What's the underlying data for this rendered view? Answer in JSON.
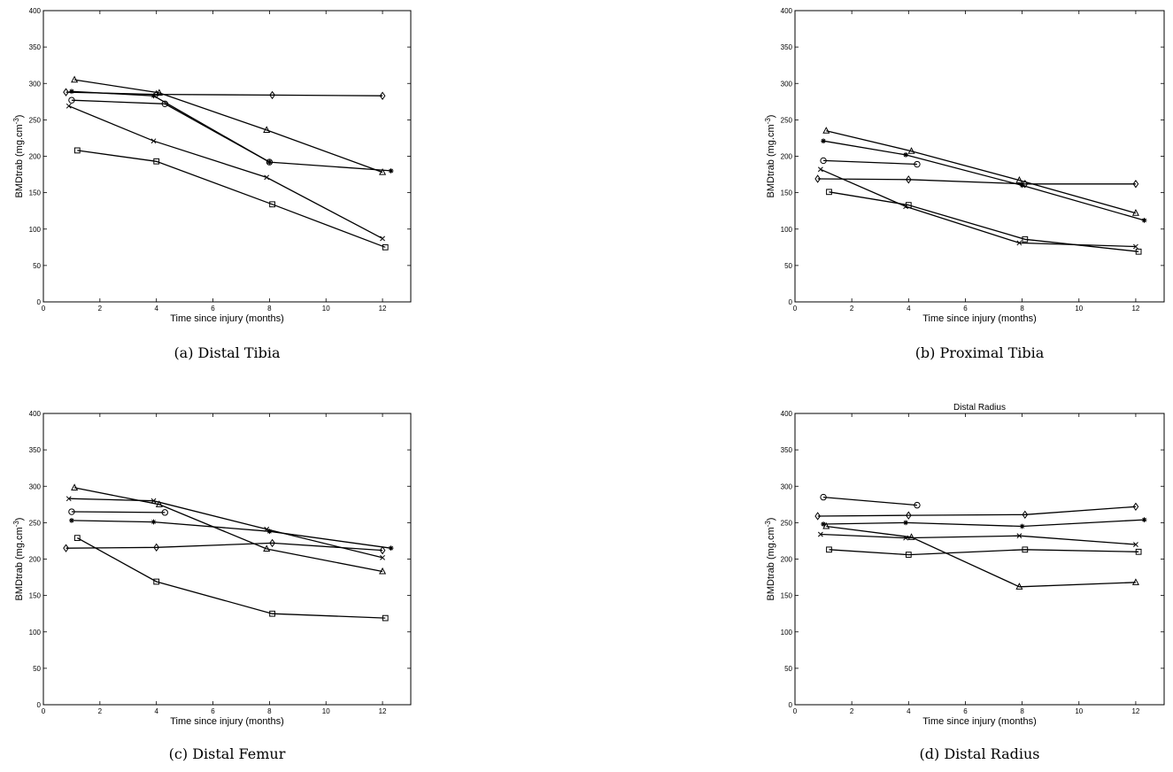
{
  "chart_data": [
    {
      "type": "line",
      "caption": "(a) Distal Tibia",
      "title": "",
      "xlabel": "Time since injury (months)",
      "ylabel": "BMDtrab (mg.cm-3)",
      "xlim": [
        0,
        13
      ],
      "ylim": [
        0,
        400
      ],
      "xticks": [
        0,
        2,
        4,
        6,
        8,
        10,
        12
      ],
      "yticks": [
        0,
        50,
        100,
        150,
        200,
        250,
        300,
        350,
        400
      ],
      "grid": false,
      "series": [
        {
          "marker": "triangle",
          "points": [
            [
              1.1,
              305
            ],
            [
              4.1,
              287
            ],
            [
              7.9,
              236
            ],
            [
              12.0,
              178
            ]
          ]
        },
        {
          "marker": "diamond",
          "points": [
            [
              0.8,
              288
            ],
            [
              4.0,
              285
            ],
            [
              8.1,
              284
            ],
            [
              12.0,
              283
            ]
          ]
        },
        {
          "marker": "star",
          "points": [
            [
              1.0,
              289
            ],
            [
              3.9,
              283
            ],
            [
              8.0,
              192
            ],
            [
              12.3,
              180
            ]
          ]
        },
        {
          "marker": "circle",
          "points": [
            [
              1.0,
              277
            ],
            [
              4.3,
              272
            ],
            [
              8.0,
              192
            ]
          ]
        },
        {
          "marker": "x",
          "points": [
            [
              0.9,
              269
            ],
            [
              3.9,
              221
            ],
            [
              7.9,
              171
            ],
            [
              12.0,
              87
            ]
          ]
        },
        {
          "marker": "square",
          "points": [
            [
              1.2,
              208
            ],
            [
              4.0,
              193
            ],
            [
              8.1,
              134
            ],
            [
              12.1,
              75
            ]
          ]
        }
      ]
    },
    {
      "type": "line",
      "caption": "(b) Proximal Tibia",
      "title": "",
      "xlabel": "Time since injury (months)",
      "ylabel": "BMDtrab (mg.cm-3)",
      "xlim": [
        0,
        13
      ],
      "ylim": [
        0,
        400
      ],
      "xticks": [
        0,
        2,
        4,
        6,
        8,
        10,
        12
      ],
      "yticks": [
        0,
        50,
        100,
        150,
        200,
        250,
        300,
        350,
        400
      ],
      "grid": false,
      "series": [
        {
          "marker": "triangle",
          "points": [
            [
              1.1,
              235
            ],
            [
              4.1,
              207
            ],
            [
              7.9,
              167
            ],
            [
              12.0,
              122
            ]
          ]
        },
        {
          "marker": "star",
          "points": [
            [
              1.0,
              221
            ],
            [
              3.9,
              202
            ],
            [
              8.0,
              160
            ],
            [
              12.3,
              112
            ]
          ]
        },
        {
          "marker": "circle",
          "points": [
            [
              1.0,
              194
            ],
            [
              4.3,
              189
            ]
          ]
        },
        {
          "marker": "diamond",
          "points": [
            [
              0.8,
              169
            ],
            [
              4.0,
              168
            ],
            [
              8.1,
              162
            ],
            [
              12.0,
              162
            ]
          ]
        },
        {
          "marker": "x",
          "points": [
            [
              0.9,
              182
            ],
            [
              3.9,
              131
            ],
            [
              7.9,
              81
            ],
            [
              12.0,
              76
            ]
          ]
        },
        {
          "marker": "square",
          "points": [
            [
              1.2,
              151
            ],
            [
              4.0,
              133
            ],
            [
              8.1,
              86
            ],
            [
              12.1,
              69
            ]
          ]
        }
      ]
    },
    {
      "type": "line",
      "caption": "(c) Distal Femur",
      "title": "",
      "xlabel": "Time since injury (months)",
      "ylabel": "BMDtrab (mg.cm-3)",
      "xlim": [
        0,
        13
      ],
      "ylim": [
        0,
        400
      ],
      "xticks": [
        0,
        2,
        4,
        6,
        8,
        10,
        12
      ],
      "yticks": [
        0,
        50,
        100,
        150,
        200,
        250,
        300,
        350,
        400
      ],
      "grid": false,
      "series": [
        {
          "marker": "triangle",
          "points": [
            [
              1.1,
              298
            ],
            [
              4.1,
              275
            ],
            [
              7.9,
              214
            ],
            [
              12.0,
              183
            ]
          ]
        },
        {
          "marker": "x",
          "points": [
            [
              0.9,
              283
            ],
            [
              3.9,
              280
            ],
            [
              7.9,
              241
            ],
            [
              12.0,
              202
            ]
          ]
        },
        {
          "marker": "circle",
          "points": [
            [
              1.0,
              265
            ],
            [
              4.3,
              264
            ]
          ]
        },
        {
          "marker": "star",
          "points": [
            [
              1.0,
              253
            ],
            [
              3.9,
              251
            ],
            [
              8.0,
              238
            ],
            [
              12.3,
              215
            ]
          ]
        },
        {
          "marker": "diamond",
          "points": [
            [
              0.8,
              215
            ],
            [
              4.0,
              216
            ],
            [
              8.1,
              222
            ],
            [
              12.0,
              212
            ]
          ]
        },
        {
          "marker": "square",
          "points": [
            [
              1.2,
              229
            ],
            [
              4.0,
              169
            ],
            [
              8.1,
              125
            ],
            [
              12.1,
              119
            ]
          ]
        }
      ]
    },
    {
      "type": "line",
      "caption": "(d) Distal Radius",
      "title": "Distal Radius",
      "xlabel": "Time since injury (months)",
      "ylabel": "BMDtrab (mg.cm-3)",
      "xlim": [
        0,
        13
      ],
      "ylim": [
        0,
        400
      ],
      "xticks": [
        0,
        2,
        4,
        6,
        8,
        10,
        12
      ],
      "yticks": [
        0,
        50,
        100,
        150,
        200,
        250,
        300,
        350,
        400
      ],
      "grid": false,
      "series": [
        {
          "marker": "circle",
          "points": [
            [
              1.0,
              285
            ],
            [
              4.3,
              274
            ]
          ]
        },
        {
          "marker": "diamond",
          "points": [
            [
              0.8,
              259
            ],
            [
              4.0,
              260
            ],
            [
              8.1,
              261
            ],
            [
              12.0,
              272
            ]
          ]
        },
        {
          "marker": "star",
          "points": [
            [
              1.0,
              248
            ],
            [
              3.9,
              250
            ],
            [
              8.0,
              245
            ],
            [
              12.3,
              254
            ]
          ]
        },
        {
          "marker": "triangle",
          "points": [
            [
              1.1,
              245
            ],
            [
              4.1,
              230
            ],
            [
              7.9,
              162
            ],
            [
              12.0,
              168
            ]
          ]
        },
        {
          "marker": "x",
          "points": [
            [
              0.9,
              234
            ],
            [
              3.9,
              229
            ],
            [
              7.9,
              232
            ],
            [
              12.0,
              220
            ]
          ]
        },
        {
          "marker": "square",
          "points": [
            [
              1.2,
              213
            ],
            [
              4.0,
              206
            ],
            [
              8.1,
              213
            ],
            [
              12.1,
              210
            ]
          ]
        }
      ]
    }
  ]
}
